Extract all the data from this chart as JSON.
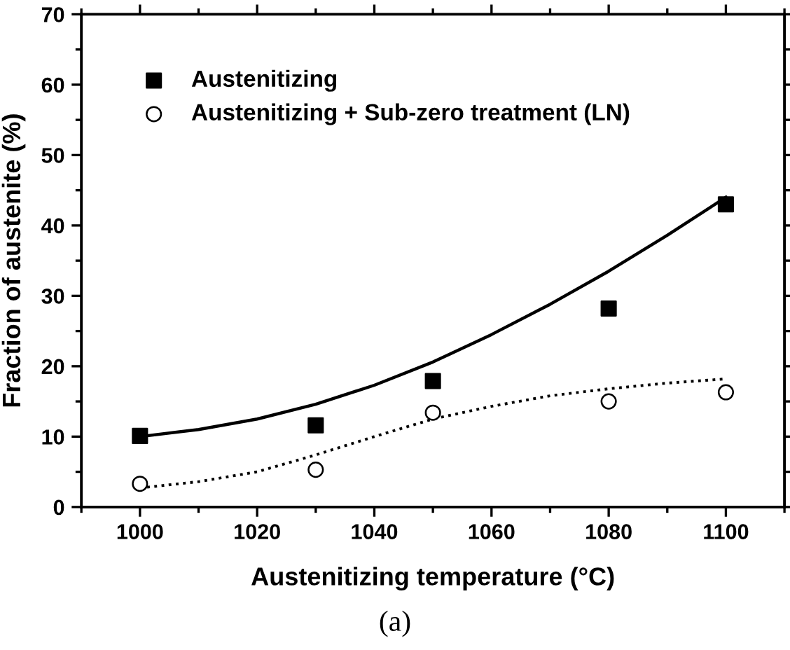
{
  "chart_data": {
    "type": "scatter",
    "xlabel": "Austenitizing temperature (°C)",
    "ylabel": "Fraction of austenite (%)",
    "xlim": [
      990,
      1110
    ],
    "ylim": [
      0,
      70
    ],
    "xticks": [
      1000,
      1020,
      1040,
      1060,
      1080,
      1100
    ],
    "yticks": [
      0,
      10,
      20,
      30,
      40,
      50,
      60,
      70
    ],
    "grid": false,
    "legend": "top left",
    "annotations": [
      "(a)"
    ],
    "series": [
      {
        "name": "Austenitizing",
        "marker": "square",
        "color": "#000000",
        "x": [
          1000,
          1030,
          1050,
          1080,
          1100
        ],
        "values": [
          10.1,
          11.6,
          17.9,
          28.2,
          43.0
        ]
      },
      {
        "name": "Austenitizing + Sub-zero treatment (LN)",
        "marker": "circle",
        "color": "#000000",
        "x": [
          1000,
          1030,
          1050,
          1080,
          1100
        ],
        "values": [
          3.3,
          5.3,
          13.4,
          15.0,
          16.3
        ]
      },
      {
        "type": "line",
        "line_style": "solid",
        "marker": "none",
        "color": "#000000",
        "x": [
          1000,
          1010,
          1020,
          1030,
          1040,
          1050,
          1060,
          1070,
          1080,
          1090,
          1100
        ],
        "values": [
          10.0,
          11.0,
          12.5,
          14.6,
          17.3,
          20.6,
          24.5,
          28.8,
          33.5,
          38.6,
          44.0
        ]
      },
      {
        "type": "line",
        "line_style": "dotted",
        "marker": "none",
        "color": "#000000",
        "x": [
          1000,
          1010,
          1020,
          1030,
          1040,
          1050,
          1060,
          1070,
          1080,
          1090,
          1100
        ],
        "values": [
          2.7,
          3.6,
          5.0,
          7.4,
          10.0,
          12.5,
          14.3,
          15.8,
          16.8,
          17.6,
          18.2
        ]
      }
    ]
  }
}
